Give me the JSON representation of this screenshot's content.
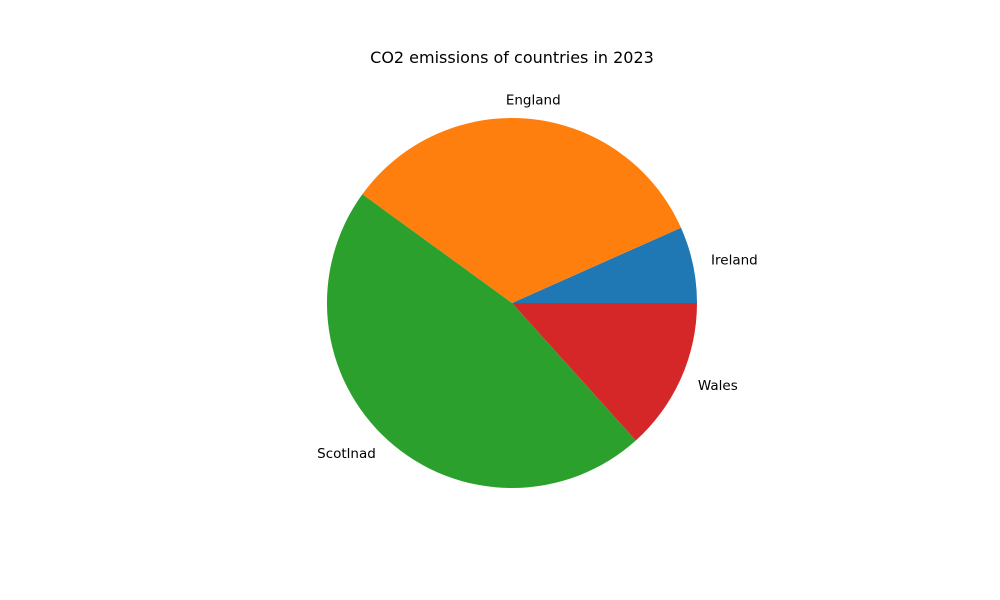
{
  "chart_data": {
    "type": "pie",
    "title": "CO2 emissions of countries in 2023",
    "start_angle_deg": 0,
    "direction": "counterclockwise",
    "slices": [
      {
        "label": "Ireland",
        "value": 6.67,
        "color": "#1f77b4"
      },
      {
        "label": "England",
        "value": 33.33,
        "color": "#ff7f0e"
      },
      {
        "label": "Scotlnad",
        "value": 46.67,
        "color": "#2ca02c"
      },
      {
        "label": "Wales",
        "value": 13.33,
        "color": "#d62728"
      }
    ]
  }
}
